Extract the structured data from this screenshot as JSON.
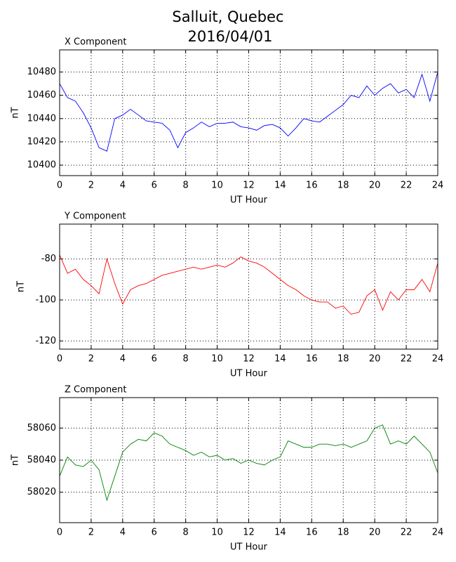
{
  "title": "Salluit, Quebec",
  "subtitle": "2016/04/01",
  "chart_data": [
    {
      "type": "line",
      "title": "X Component",
      "xlabel": "UT Hour",
      "ylabel": "nT",
      "color": "#0000ff",
      "grid": true,
      "x": [
        0,
        0.5,
        1,
        1.5,
        2,
        2.5,
        3,
        3.5,
        4,
        4.5,
        5,
        5.5,
        6,
        6.5,
        7,
        7.5,
        8,
        8.5,
        9,
        9.5,
        10,
        10.5,
        11,
        11.5,
        12,
        12.5,
        13,
        13.5,
        14,
        14.5,
        15,
        15.5,
        16,
        16.5,
        17,
        17.5,
        18,
        18.5,
        19,
        19.5,
        20,
        20.5,
        21,
        21.5,
        22,
        22.5,
        23,
        23.5,
        24
      ],
      "values": [
        10470,
        10458,
        10455,
        10445,
        10432,
        10415,
        10412,
        10440,
        10443,
        10448,
        10443,
        10438,
        10437,
        10436,
        10430,
        10415,
        10428,
        10432,
        10437,
        10433,
        10436,
        10436,
        10437,
        10433,
        10432,
        10430,
        10434,
        10435,
        10432,
        10425,
        10432,
        10440,
        10438,
        10437,
        10442,
        10447,
        10452,
        10460,
        10458,
        10468,
        10460,
        10466,
        10470,
        10462,
        10465,
        10458,
        10478,
        10455,
        10480
      ],
      "xlim": [
        0,
        24
      ],
      "xticks": [
        0,
        2,
        4,
        6,
        8,
        10,
        12,
        14,
        16,
        18,
        20,
        22,
        24
      ],
      "ylim": [
        10391,
        10499
      ],
      "yticks": [
        10400,
        10420,
        10440,
        10460,
        10480
      ]
    },
    {
      "type": "line",
      "title": "Y Component",
      "xlabel": "UT Hour",
      "ylabel": "nT",
      "color": "#ff0000",
      "grid": true,
      "x": [
        0,
        0.5,
        1,
        1.5,
        2,
        2.5,
        3,
        3.5,
        4,
        4.5,
        5,
        5.5,
        6,
        6.5,
        7,
        7.5,
        8,
        8.5,
        9,
        9.5,
        10,
        10.5,
        11,
        11.5,
        12,
        12.5,
        13,
        13.5,
        14,
        14.5,
        15,
        15.5,
        16,
        16.5,
        17,
        17.5,
        18,
        18.5,
        19,
        19.5,
        20,
        20.5,
        21,
        21.5,
        22,
        22.5,
        23,
        23.5,
        24
      ],
      "values": [
        -78,
        -87,
        -85,
        -90,
        -93,
        -97,
        -80,
        -92,
        -102,
        -95,
        -93,
        -92,
        -90,
        -88,
        -87,
        -86,
        -85,
        -84,
        -85,
        -84,
        -83,
        -84,
        -82,
        -79,
        -81,
        -82,
        -84,
        -87,
        -90,
        -93,
        -95,
        -98,
        -100,
        -101,
        -101,
        -104,
        -103,
        -107,
        -106,
        -98,
        -95,
        -105,
        -96,
        -100,
        -95,
        -95,
        -90,
        -96,
        -82
      ],
      "xlim": [
        0,
        24
      ],
      "xticks": [
        0,
        2,
        4,
        6,
        8,
        10,
        12,
        14,
        16,
        18,
        20,
        22,
        24
      ],
      "ylim": [
        -124,
        -63
      ],
      "yticks": [
        -120,
        -100,
        -80
      ]
    },
    {
      "type": "line",
      "title": "Z Component",
      "xlabel": "UT Hour",
      "ylabel": "nT",
      "color": "#008000",
      "grid": true,
      "x": [
        0,
        0.5,
        1,
        1.5,
        2,
        2.5,
        3,
        3.5,
        4,
        4.5,
        5,
        5.5,
        6,
        6.5,
        7,
        7.5,
        8,
        8.5,
        9,
        9.5,
        10,
        10.5,
        11,
        11.5,
        12,
        12.5,
        13,
        13.5,
        14,
        14.5,
        15,
        15.5,
        16,
        16.5,
        17,
        17.5,
        18,
        18.5,
        19,
        19.5,
        20,
        20.5,
        21,
        21.5,
        22,
        22.5,
        23,
        23.5,
        24
      ],
      "values": [
        58030,
        58042,
        58037,
        58036,
        58040,
        58034,
        58015,
        58030,
        58045,
        58050,
        58053,
        58052,
        58057,
        58055,
        58050,
        58048,
        58046,
        58043,
        58045,
        58042,
        58043,
        58040,
        58041,
        58038,
        58040,
        58038,
        58037,
        58040,
        58042,
        58052,
        58050,
        58048,
        58048,
        58050,
        58050,
        58049,
        58050,
        58048,
        58050,
        58052,
        58060,
        58062,
        58050,
        58052,
        58050,
        58055,
        58050,
        58045,
        58032
      ],
      "xlim": [
        0,
        24
      ],
      "xticks": [
        0,
        2,
        4,
        6,
        8,
        10,
        12,
        14,
        16,
        18,
        20,
        22,
        24
      ],
      "ylim": [
        58001,
        58079
      ],
      "yticks": [
        58020,
        58040,
        58060
      ]
    }
  ]
}
